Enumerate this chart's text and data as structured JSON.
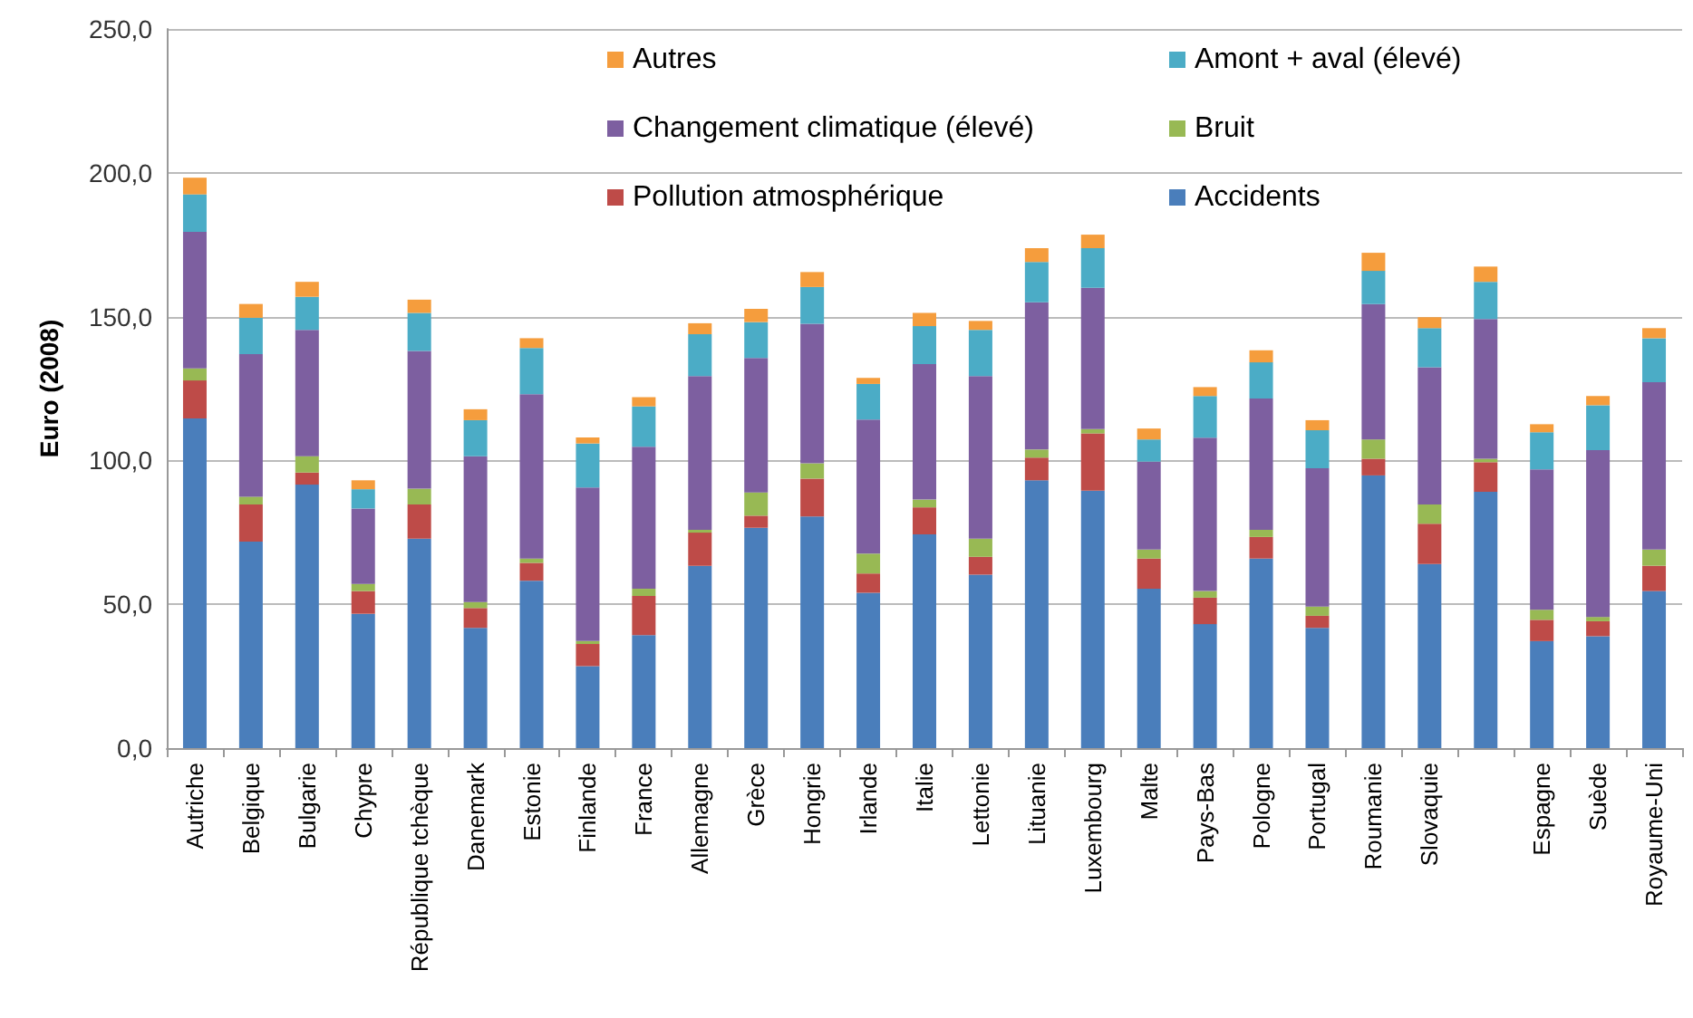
{
  "chart_data": {
    "type": "bar",
    "stacked": true,
    "ylabel": "Euro (2008)",
    "categories": [
      "Autriche",
      "Belgique",
      "Bulgarie",
      "Chypre",
      "République tchèque",
      "Danemark",
      "Estonie",
      "Finlande",
      "France",
      "Allemagne",
      "Grèce",
      "Hongrie",
      "Irlande",
      "Italie",
      "Lettonie",
      "Lituanie",
      "Luxembourg",
      "Malte",
      "Pays-Bas",
      "Pologne",
      "Portugal",
      "Roumanie",
      "Slovaquie",
      null,
      "Espagne",
      "Suède",
      "Royaume-Uni"
    ],
    "series": [
      {
        "name": "Accidents",
        "color": "#4a7ebb",
        "values": [
          114.6,
          71.8,
          91.6,
          46.7,
          72.8,
          41.8,
          58.2,
          28.5,
          39.3,
          63.4,
          76.6,
          80.5,
          54,
          74.3,
          60.3,
          93.1,
          89.5,
          55.4,
          43.1,
          65.9,
          41.8,
          94.8,
          64,
          89.1,
          37.2,
          38.9,
          54.6
        ]
      },
      {
        "name": "Pollution atmosphérique",
        "color": "#be4b48",
        "values": [
          13.2,
          12.9,
          4.2,
          7.9,
          11.9,
          6.9,
          6.2,
          7.7,
          13.6,
          11.5,
          4.2,
          13.2,
          6.7,
          9.4,
          6.2,
          7.9,
          19.9,
          10.5,
          9.2,
          7.5,
          4.2,
          5.8,
          14,
          10.3,
          7.4,
          5.2,
          8.8
        ]
      },
      {
        "name": "Bruit",
        "color": "#98b954",
        "values": [
          4.2,
          2.7,
          5.7,
          2.5,
          5.5,
          2.1,
          1.5,
          1,
          2.5,
          1,
          8.1,
          5.3,
          6.9,
          2.7,
          6.3,
          2.8,
          1.5,
          3.1,
          2.3,
          2.5,
          3.2,
          6.7,
          6.7,
          1.2,
          3.5,
          1.5,
          5.6
        ]
      },
      {
        "name": "Changement climatique (élevé)",
        "color": "#7d5fa0",
        "values": [
          47.5,
          49.6,
          43.9,
          26.2,
          47.9,
          50.7,
          57.1,
          53.4,
          49.4,
          53.4,
          46.7,
          48.5,
          46.6,
          47.1,
          56.5,
          51.2,
          49.1,
          30.6,
          53.3,
          45.6,
          48.1,
          47.1,
          47.7,
          48.6,
          48.8,
          58,
          58.2
        ]
      },
      {
        "name": "Amont + aval (élevé)",
        "color": "#4bacc6",
        "values": [
          13,
          12.6,
          11.5,
          6.7,
          13.2,
          12.5,
          16.1,
          15.3,
          14,
          14.6,
          12.5,
          12.8,
          12.4,
          13.2,
          16.1,
          14,
          13.8,
          7.7,
          14.5,
          12.6,
          13.2,
          11.5,
          13.6,
          12.9,
          12.9,
          15.6,
          15.3
        ]
      },
      {
        "name": "Autres",
        "color": "#f59d3d",
        "values": [
          5.8,
          4.8,
          5.2,
          3.1,
          4.6,
          3.8,
          3.4,
          2.1,
          3.2,
          3.8,
          4.6,
          5.2,
          2.1,
          4.6,
          3.1,
          4.8,
          4.7,
          3.8,
          3.1,
          4.2,
          3.5,
          6.3,
          3.8,
          5.3,
          2.8,
          3.2,
          3.5
        ]
      }
    ],
    "ylim": [
      0,
      250
    ],
    "yticks": [
      {
        "value": 0,
        "label": "0,0"
      },
      {
        "value": 50,
        "label": "50,0"
      },
      {
        "value": 100,
        "label": "100,0"
      },
      {
        "value": 150,
        "label": "150,0"
      },
      {
        "value": 200,
        "label": "200,0"
      },
      {
        "value": 250,
        "label": "250,0"
      }
    ],
    "grid": "y",
    "legend": "top"
  }
}
